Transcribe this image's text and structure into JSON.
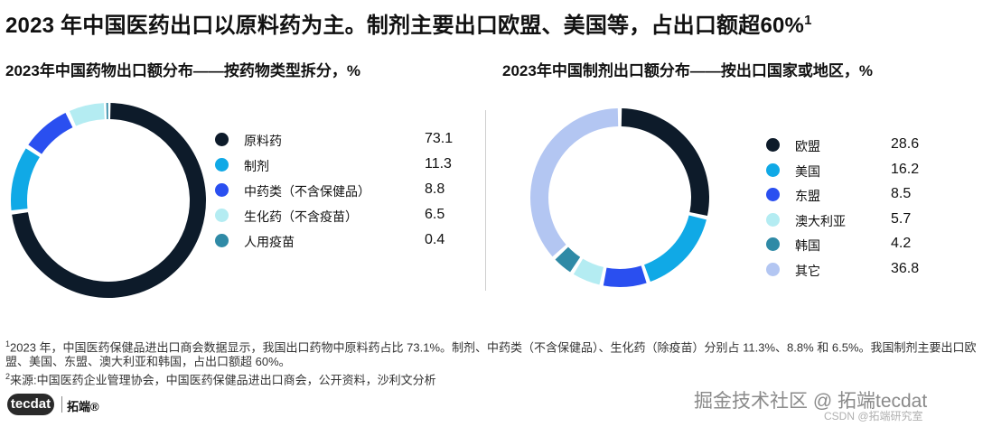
{
  "main_title": "2023 年中国医药出口以原料药为主。制剂主要出口欧盟、美国等，占出口额超60%",
  "main_title_sup": "1",
  "chart_data": [
    {
      "type": "pie",
      "title": "2023年中国药物出口额分布——按药物类型拆分，%",
      "categories": [
        "原料药",
        "制剂",
        "中药类（不含保健品）",
        "生化药（不含疫苗）",
        "人用疫苗"
      ],
      "values": [
        73.1,
        11.3,
        8.8,
        6.5,
        0.4
      ],
      "value_labels": [
        "73.1",
        "11.3",
        "8.8",
        "6.5",
        "0.4"
      ],
      "colors": [
        "#0d1b2a",
        "#10a9e6",
        "#2a4ff0",
        "#b4ecf2",
        "#2f8aa6"
      ],
      "legend_position": "right"
    },
    {
      "type": "pie",
      "title": "2023年中国制剂出口额分布——按出口国家或地区，%",
      "categories": [
        "欧盟",
        "美国",
        "东盟",
        "澳大利亚",
        "韩国",
        "其它"
      ],
      "values": [
        28.6,
        16.2,
        8.5,
        5.7,
        4.2,
        36.8
      ],
      "value_labels": [
        "28.6",
        "16.2",
        "8.5",
        "5.7",
        "4.2",
        "36.8"
      ],
      "colors": [
        "#0d1b2a",
        "#10a9e6",
        "#2a4ff0",
        "#b4ecf2",
        "#2f8aa6",
        "#b3c6f2"
      ],
      "legend_position": "right"
    }
  ],
  "notes": {
    "note1_marker": "1",
    "note1": "2023 年，中国医药保健品进出口商会数据显示，我国出口药物中原料药占比 73.1%。制剂、中药类（不含保健品）、生化药（除疫苗）分别占 11.3%、8.8% 和 6.5%。我国制剂主要出口欧盟、美国、东盟、澳大利亚和韩国，占出口额超 60%。",
    "note2_marker": "2",
    "note2": "来源:中国医药企业管理协会，中国医药保健品进出口商会，公开资料，沙利文分析"
  },
  "logo": {
    "mark": "tecdat",
    "cn": "拓端®"
  },
  "watermark": "掘金技术社区 @ 拓端tecdat",
  "watermark_small": "CSDN @拓端研究室"
}
